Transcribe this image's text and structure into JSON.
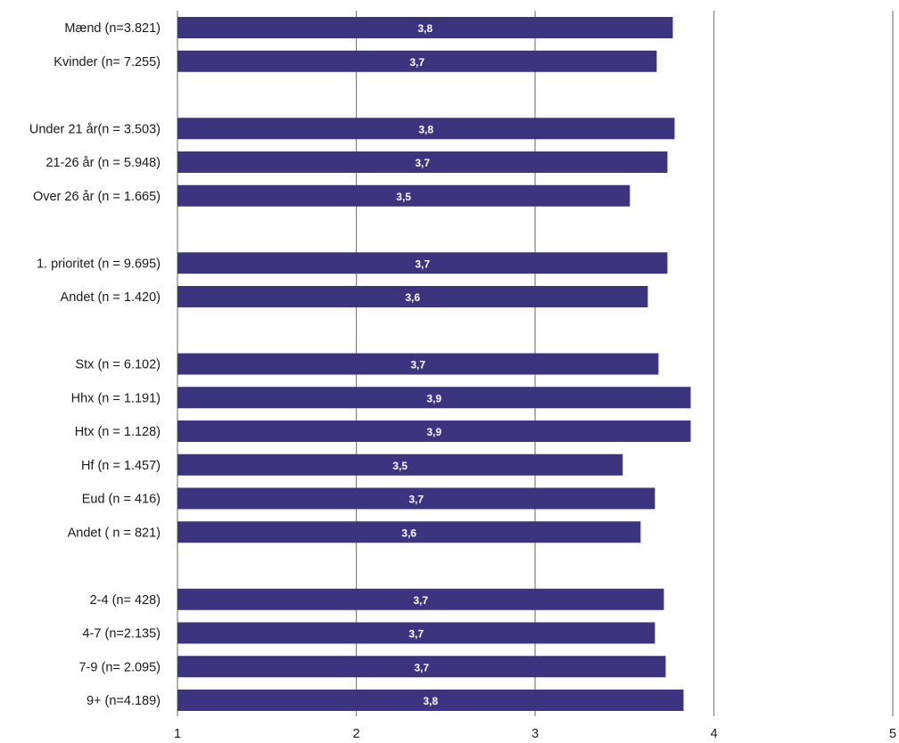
{
  "chart_data": {
    "type": "bar",
    "orientation": "horizontal",
    "xlim": [
      1,
      5
    ],
    "xticks": [
      "1",
      "2",
      "3",
      "4",
      "5"
    ],
    "grid": "vertical",
    "bar_color": "#3d3480",
    "rows": [
      {
        "label": "Mænd (n=3.821)",
        "value": 3.77,
        "data_label": "3,8"
      },
      {
        "label": "Kvinder (n= 7.255)",
        "value": 3.68,
        "data_label": "3,7"
      },
      {
        "label": "",
        "value": null,
        "data_label": ""
      },
      {
        "label": "Under 21 år(n = 3.503)",
        "value": 3.78,
        "data_label": "3,8"
      },
      {
        "label": "21-26 år (n = 5.948)",
        "value": 3.74,
        "data_label": "3,7"
      },
      {
        "label": "Over 26 år (n = 1.665)",
        "value": 3.53,
        "data_label": "3,5"
      },
      {
        "label": "",
        "value": null,
        "data_label": ""
      },
      {
        "label": "1. prioritet (n = 9.695)",
        "value": 3.74,
        "data_label": "3,7"
      },
      {
        "label": "Andet (n = 1.420)",
        "value": 3.63,
        "data_label": "3,6"
      },
      {
        "label": "",
        "value": null,
        "data_label": ""
      },
      {
        "label": "Stx (n = 6.102)",
        "value": 3.69,
        "data_label": "3,7"
      },
      {
        "label": "Hhx (n = 1.191)",
        "value": 3.87,
        "data_label": "3,9"
      },
      {
        "label": "Htx (n = 1.128)",
        "value": 3.87,
        "data_label": "3,9"
      },
      {
        "label": "Hf (n = 1.457)",
        "value": 3.49,
        "data_label": "3,5"
      },
      {
        "label": "Eud (n = 416)",
        "value": 3.67,
        "data_label": "3,7"
      },
      {
        "label": "Andet ( n = 821)",
        "value": 3.59,
        "data_label": "3,6"
      },
      {
        "label": "",
        "value": null,
        "data_label": ""
      },
      {
        "label": "2-4 (n= 428)",
        "value": 3.72,
        "data_label": "3,7"
      },
      {
        "label": "4-7 (n=2.135)",
        "value": 3.67,
        "data_label": "3,7"
      },
      {
        "label": "7-9 (n= 2.095)",
        "value": 3.73,
        "data_label": "3,7"
      },
      {
        "label": "9+ (n=4.189)",
        "value": 3.83,
        "data_label": "3,8"
      }
    ]
  }
}
